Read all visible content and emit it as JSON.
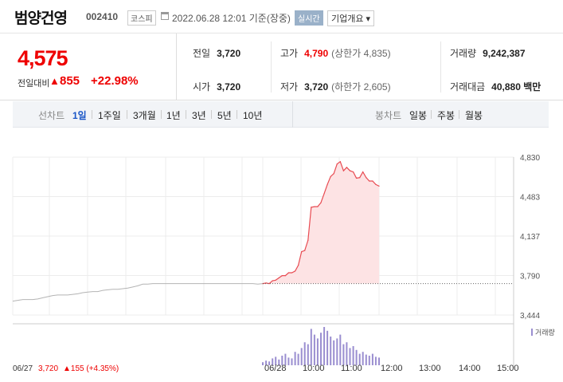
{
  "header": {
    "title": "범양건영",
    "code": "002410",
    "market": "코스피",
    "datetime": "2022.06.28 12:01 기준(장중)",
    "realtime_label": "실시간",
    "overview_label": "기업개요 ▾"
  },
  "quote": {
    "price": "4,575",
    "change_label": "전일대비",
    "change_arrow": "▲",
    "change_value": "855",
    "change_pct": "+22.98%",
    "prev_close_label": "전일",
    "prev_close": "3,720",
    "open_label": "시가",
    "open": "3,720",
    "high_label": "고가",
    "high": "4,790",
    "upper_limit": "(상한가 4,835)",
    "low_label": "저가",
    "low": "3,720",
    "lower_limit": "(하한가 2,605)",
    "volume_label": "거래량",
    "volume": "9,242,387",
    "amount_label": "거래대금",
    "amount": "40,880 백만"
  },
  "tabs": {
    "line_label": "선차트",
    "line_items": [
      "1일",
      "1주일",
      "3개월",
      "1년",
      "3년",
      "5년",
      "10년"
    ],
    "active": "1일",
    "candle_label": "봉차트",
    "candle_items": [
      "일봉",
      "주봉",
      "월봉"
    ]
  },
  "chart_data": {
    "type": "area",
    "y_ticks": [
      "4,830",
      "4,483",
      "4,137",
      "3,790",
      "3,444"
    ],
    "ylim": [
      3444,
      4830
    ],
    "prev_close": 3720,
    "x_labels": [
      "06/27",
      "06/28",
      "10:00",
      "11:00",
      "12:00",
      "13:00",
      "14:00",
      "15:00"
    ],
    "prev_day_footer": "06/27",
    "prev_day_price": "3,720",
    "prev_day_change": "▲155 (+4.35%)",
    "volume_legend": "거래량",
    "series": [
      {
        "x": [
          "09:00",
          "09:05",
          "09:10",
          "09:15",
          "09:20",
          "09:25",
          "09:30",
          "09:35",
          "09:40",
          "09:45",
          "09:50",
          "09:55",
          "10:00",
          "10:05",
          "10:10",
          "10:15",
          "10:20",
          "10:25",
          "10:30",
          "10:35",
          "10:40",
          "10:45",
          "10:50",
          "10:55",
          "11:00",
          "11:05",
          "11:10",
          "11:15",
          "11:20",
          "11:25",
          "11:30",
          "11:35",
          "11:40",
          "11:45",
          "11:50",
          "11:55",
          "12:00"
        ],
        "values": [
          3720,
          3725,
          3720,
          3745,
          3750,
          3770,
          3790,
          3790,
          3815,
          3815,
          3830,
          3880,
          4000,
          4010,
          4100,
          4390,
          4395,
          4395,
          4430,
          4510,
          4590,
          4660,
          4685,
          4770,
          4790,
          4710,
          4740,
          4710,
          4700,
          4645,
          4650,
          4700,
          4650,
          4620,
          4620,
          4590,
          4575
        ]
      }
    ],
    "prev_day": [
      3566,
      3573,
      3580,
      3580,
      3580,
      3585,
      3595,
      3605,
      3615,
      3620,
      3620,
      3620,
      3625,
      3630,
      3640,
      3645,
      3650,
      3650,
      3660,
      3665,
      3670,
      3670,
      3675,
      3680,
      3690,
      3700,
      3715,
      3715,
      3720,
      3720,
      3720,
      3720,
      3720,
      3720,
      3720,
      3720,
      3720,
      3720,
      3720,
      3720,
      3720,
      3720,
      3720,
      3720,
      3720,
      3720,
      3720,
      3720,
      3720,
      3715,
      3720
    ],
    "volume": [
      8,
      12,
      10,
      18,
      22,
      15,
      25,
      30,
      20,
      18,
      35,
      30,
      45,
      60,
      55,
      95,
      80,
      70,
      85,
      100,
      90,
      75,
      65,
      70,
      80,
      55,
      60,
      45,
      50,
      40,
      30,
      35,
      28,
      25,
      30,
      22,
      20
    ]
  }
}
